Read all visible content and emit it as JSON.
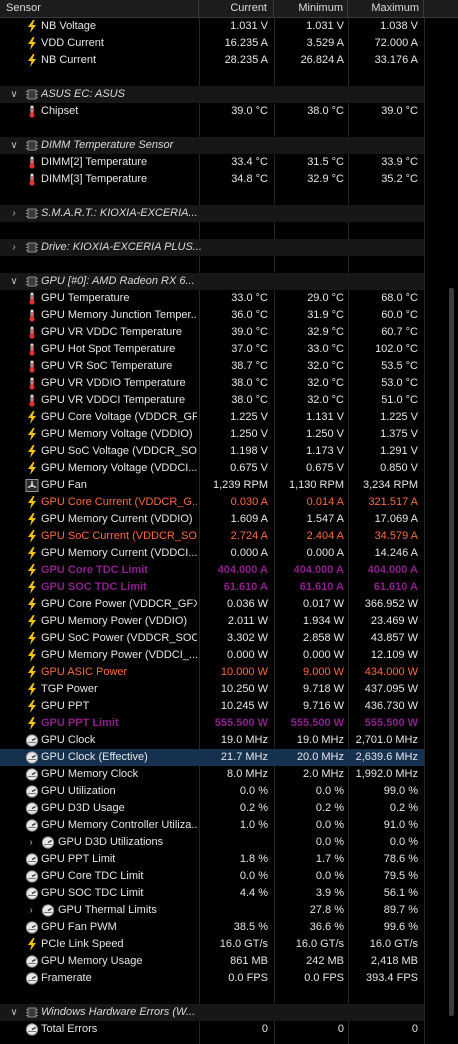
{
  "header": {
    "sensor": "Sensor",
    "current": "Current",
    "minimum": "Minimum",
    "maximum": "Maximum"
  },
  "colors": {
    "warn": "#ff6a3d",
    "critical": "#8e1f8e",
    "selected_row": "#15314f"
  },
  "rows": [
    {
      "type": "sensor",
      "icon": "voltage-bolt-icon",
      "label": "NB Voltage",
      "cur": "1.031 V",
      "min": "1.031 V",
      "max": "1.038 V"
    },
    {
      "type": "sensor",
      "icon": "voltage-bolt-icon",
      "label": "VDD Current",
      "cur": "16.235 A",
      "min": "3.529 A",
      "max": "72.000 A"
    },
    {
      "type": "sensor",
      "icon": "voltage-bolt-icon",
      "label": "NB Current",
      "cur": "28.235 A",
      "min": "26.824 A",
      "max": "33.176 A"
    },
    {
      "type": "blank"
    },
    {
      "type": "group",
      "icon": "chip-icon",
      "label": "ASUS EC: ASUS"
    },
    {
      "type": "sensor",
      "icon": "thermometer-icon",
      "label": "Chipset",
      "cur": "39.0 °C",
      "min": "38.0 °C",
      "max": "39.0 °C"
    },
    {
      "type": "blank"
    },
    {
      "type": "group",
      "icon": "chip-icon",
      "label": "DIMM Temperature Sensor"
    },
    {
      "type": "sensor",
      "icon": "thermometer-icon",
      "label": "DIMM[2] Temperature",
      "cur": "33.4 °C",
      "min": "31.5 °C",
      "max": "33.9 °C"
    },
    {
      "type": "sensor",
      "icon": "thermometer-icon",
      "label": "DIMM[3] Temperature",
      "cur": "34.8 °C",
      "min": "32.9 °C",
      "max": "35.2 °C"
    },
    {
      "type": "blank"
    },
    {
      "type": "group",
      "collapsed": true,
      "icon": "chip-icon",
      "label": "S.M.A.R.T.: KIOXIA-EXCERIA..."
    },
    {
      "type": "blank"
    },
    {
      "type": "group",
      "collapsed": true,
      "icon": "chip-icon",
      "label": "Drive: KIOXIA-EXCERIA PLUS..."
    },
    {
      "type": "blank"
    },
    {
      "type": "group",
      "icon": "chip-icon",
      "label": "GPU [#0]: AMD Radeon RX 6..."
    },
    {
      "type": "sensor",
      "icon": "thermometer-icon",
      "label": "GPU Temperature",
      "cur": "33.0 °C",
      "min": "29.0 °C",
      "max": "68.0 °C"
    },
    {
      "type": "sensor",
      "icon": "thermometer-icon",
      "label": "GPU Memory Junction Temper...",
      "cur": "36.0 °C",
      "min": "31.9 °C",
      "max": "60.0 °C"
    },
    {
      "type": "sensor",
      "icon": "thermometer-icon",
      "label": "GPU VR VDDC Temperature",
      "cur": "39.0 °C",
      "min": "32.9 °C",
      "max": "60.7 °C"
    },
    {
      "type": "sensor",
      "icon": "thermometer-icon",
      "label": "GPU Hot Spot Temperature",
      "cur": "37.0 °C",
      "min": "33.0 °C",
      "max": "102.0 °C"
    },
    {
      "type": "sensor",
      "icon": "thermometer-icon",
      "label": "GPU VR SoC Temperature",
      "cur": "38.7 °C",
      "min": "32.0 °C",
      "max": "53.5 °C"
    },
    {
      "type": "sensor",
      "icon": "thermometer-icon",
      "label": "GPU VR VDDIO Temperature",
      "cur": "38.0 °C",
      "min": "32.0 °C",
      "max": "53.0 °C"
    },
    {
      "type": "sensor",
      "icon": "thermometer-icon",
      "label": "GPU VR VDDCI Temperature",
      "cur": "38.0 °C",
      "min": "32.0 °C",
      "max": "51.0 °C"
    },
    {
      "type": "sensor",
      "icon": "voltage-bolt-icon",
      "label": "GPU Core Voltage (VDDCR_GFX)",
      "cur": "1.225 V",
      "min": "1.131 V",
      "max": "1.225 V"
    },
    {
      "type": "sensor",
      "icon": "voltage-bolt-icon",
      "label": "GPU Memory Voltage (VDDIO)",
      "cur": "1.250 V",
      "min": "1.250 V",
      "max": "1.375 V"
    },
    {
      "type": "sensor",
      "icon": "voltage-bolt-icon",
      "label": "GPU SoC Voltage (VDDCR_SOC)",
      "cur": "1.198 V",
      "min": "1.173 V",
      "max": "1.291 V"
    },
    {
      "type": "sensor",
      "icon": "voltage-bolt-icon",
      "label": "GPU Memory Voltage (VDDCI...",
      "cur": "0.675 V",
      "min": "0.675 V",
      "max": "0.850 V"
    },
    {
      "type": "sensor",
      "icon": "fan-icon",
      "label": "GPU Fan",
      "cur": "1,239 RPM",
      "min": "1,130 RPM",
      "max": "3,234 RPM"
    },
    {
      "type": "sensor",
      "icon": "voltage-bolt-icon",
      "label": "GPU Core Current (VDDCR_G...",
      "cur": "0.030 A",
      "min": "0.014 A",
      "max": "321.517 A",
      "style": "warn"
    },
    {
      "type": "sensor",
      "icon": "voltage-bolt-icon",
      "label": "GPU Memory Current (VDDIO)",
      "cur": "1.609 A",
      "min": "1.547 A",
      "max": "17.069 A"
    },
    {
      "type": "sensor",
      "icon": "voltage-bolt-icon",
      "label": "GPU SoC Current (VDDCR_SOC)",
      "cur": "2.724 A",
      "min": "2.404 A",
      "max": "34.579 A",
      "style": "warn"
    },
    {
      "type": "sensor",
      "icon": "voltage-bolt-icon",
      "label": "GPU Memory Current (VDDCI...",
      "cur": "0.000 A",
      "min": "0.000 A",
      "max": "14.246 A"
    },
    {
      "type": "sensor",
      "icon": "voltage-bolt-icon",
      "label": "GPU Core TDC Limit",
      "cur": "404.000 A",
      "min": "404.000 A",
      "max": "404.000 A",
      "style": "crit"
    },
    {
      "type": "sensor",
      "icon": "voltage-bolt-icon",
      "label": "GPU SOC TDC Limit",
      "cur": "61.610 A",
      "min": "61.610 A",
      "max": "61.610 A",
      "style": "crit"
    },
    {
      "type": "sensor",
      "icon": "voltage-bolt-icon",
      "label": "GPU Core Power (VDDCR_GFX)",
      "cur": "0.036 W",
      "min": "0.017 W",
      "max": "366.952 W"
    },
    {
      "type": "sensor",
      "icon": "voltage-bolt-icon",
      "label": "GPU Memory Power (VDDIO)",
      "cur": "2.011 W",
      "min": "1.934 W",
      "max": "23.469 W"
    },
    {
      "type": "sensor",
      "icon": "voltage-bolt-icon",
      "label": "GPU SoC Power (VDDCR_SOC)",
      "cur": "3.302 W",
      "min": "2.858 W",
      "max": "43.857 W"
    },
    {
      "type": "sensor",
      "icon": "voltage-bolt-icon",
      "label": "GPU Memory Power (VDDCI_...",
      "cur": "0.000 W",
      "min": "0.000 W",
      "max": "12.109 W"
    },
    {
      "type": "sensor",
      "icon": "voltage-bolt-icon",
      "label": "GPU ASIC Power",
      "cur": "10.000 W",
      "min": "9.000 W",
      "max": "434.000 W",
      "style": "warn"
    },
    {
      "type": "sensor",
      "icon": "voltage-bolt-icon",
      "label": "TGP Power",
      "cur": "10.250 W",
      "min": "9.718 W",
      "max": "437.095 W"
    },
    {
      "type": "sensor",
      "icon": "voltage-bolt-icon",
      "label": "GPU PPT",
      "cur": "10.245 W",
      "min": "9.716 W",
      "max": "436.730 W"
    },
    {
      "type": "sensor",
      "icon": "voltage-bolt-icon",
      "label": "GPU PPT Limit",
      "cur": "555.500 W",
      "min": "555.500 W",
      "max": "555.500 W",
      "style": "crit"
    },
    {
      "type": "sensor",
      "icon": "clock-gauge-icon",
      "label": "GPU Clock",
      "cur": "19.0 MHz",
      "min": "19.0 MHz",
      "max": "2,701.0 MHz"
    },
    {
      "type": "sensor",
      "icon": "clock-gauge-icon",
      "label": "GPU Clock (Effective)",
      "cur": "21.7 MHz",
      "min": "20.0 MHz",
      "max": "2,639.6 MHz",
      "selected": true
    },
    {
      "type": "sensor",
      "icon": "clock-gauge-icon",
      "label": "GPU Memory Clock",
      "cur": "8.0 MHz",
      "min": "2.0 MHz",
      "max": "1,992.0 MHz"
    },
    {
      "type": "sensor",
      "icon": "clock-gauge-icon",
      "label": "GPU Utilization",
      "cur": "0.0 %",
      "min": "0.0 %",
      "max": "99.0 %"
    },
    {
      "type": "sensor",
      "icon": "clock-gauge-icon",
      "label": "GPU D3D Usage",
      "cur": "0.2 %",
      "min": "0.2 %",
      "max": "0.2 %"
    },
    {
      "type": "sensor",
      "icon": "clock-gauge-icon",
      "label": "GPU Memory Controller Utiliza...",
      "cur": "1.0 %",
      "min": "0.0 %",
      "max": "91.0 %"
    },
    {
      "type": "sensor",
      "sub": true,
      "twisty": "right",
      "icon": "clock-gauge-icon",
      "label": "GPU D3D Utilizations",
      "cur": "",
      "min": "0.0 %",
      "max": "0.0 %"
    },
    {
      "type": "sensor",
      "icon": "clock-gauge-icon",
      "label": "GPU PPT Limit",
      "cur": "1.8 %",
      "min": "1.7 %",
      "max": "78.6 %"
    },
    {
      "type": "sensor",
      "icon": "clock-gauge-icon",
      "label": "GPU Core TDC Limit",
      "cur": "0.0 %",
      "min": "0.0 %",
      "max": "79.5 %"
    },
    {
      "type": "sensor",
      "icon": "clock-gauge-icon",
      "label": "GPU SOC TDC Limit",
      "cur": "4.4 %",
      "min": "3.9 %",
      "max": "56.1 %"
    },
    {
      "type": "sensor",
      "sub": true,
      "twisty": "right",
      "icon": "clock-gauge-icon",
      "label": "GPU Thermal Limits",
      "cur": "",
      "min": "27.8 %",
      "max": "89.7 %"
    },
    {
      "type": "sensor",
      "icon": "clock-gauge-icon",
      "label": "GPU Fan PWM",
      "cur": "38.5 %",
      "min": "36.6 %",
      "max": "99.6 %"
    },
    {
      "type": "sensor",
      "icon": "voltage-bolt-icon",
      "label": "PCIe Link Speed",
      "cur": "16.0 GT/s",
      "min": "16.0 GT/s",
      "max": "16.0 GT/s"
    },
    {
      "type": "sensor",
      "icon": "clock-gauge-icon",
      "label": "GPU Memory Usage",
      "cur": "861 MB",
      "min": "242 MB",
      "max": "2,418 MB"
    },
    {
      "type": "sensor",
      "icon": "clock-gauge-icon",
      "label": "Framerate",
      "cur": "0.0 FPS",
      "min": "0.0 FPS",
      "max": "393.4 FPS"
    },
    {
      "type": "blank"
    },
    {
      "type": "group",
      "icon": "chip-icon",
      "label": "Windows Hardware Errors (W..."
    },
    {
      "type": "sensor",
      "icon": "clock-gauge-icon",
      "label": "Total Errors",
      "cur": "0",
      "min": "0",
      "max": "0"
    }
  ]
}
